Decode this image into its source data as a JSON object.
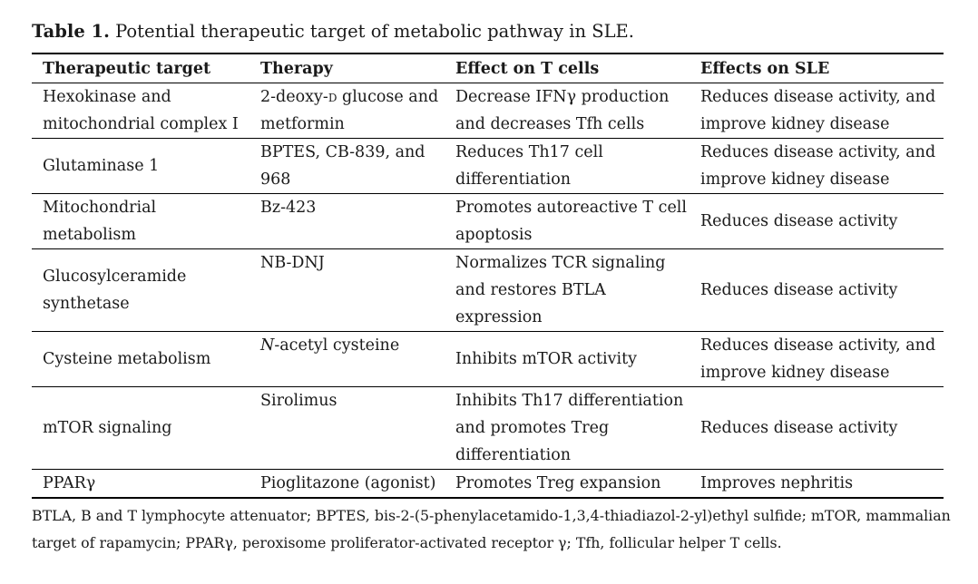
{
  "caption": {
    "label": "Table 1.",
    "text": "Potential therapeutic target of metabolic pathway in SLE."
  },
  "headers": [
    "Therapeutic target",
    "Therapy",
    "Effect on T cells",
    "Effects on SLE"
  ],
  "rows": [
    {
      "target": "Hexokinase and mitochondrial complex I",
      "therapy_pre": "2-deoxy-",
      "therapy_sc": "d",
      "therapy_post": " glucose and metformin",
      "effect_t": "Decrease IFNγ production and decreases Tfh cells",
      "effect_sle": "Reduces disease activity, and improve kidney disease"
    },
    {
      "target": "Glutaminase 1",
      "therapy": "BPTES, CB-839, and 968",
      "effect_t": "Reduces Th17 cell differentiation",
      "effect_sle": "Reduces disease activity, and improve kidney disease"
    },
    {
      "target": "Mitochondrial metabolism",
      "therapy": "Bz-423",
      "effect_t": "Promotes autoreactive T cell apoptosis",
      "effect_sle": "Reduces disease activity"
    },
    {
      "target": "Glucosylceramide synthetase",
      "therapy": "NB-DNJ",
      "effect_t": "Normalizes TCR signaling and restores BTLA expression",
      "effect_sle": "Reduces disease activity"
    },
    {
      "target": "Cysteine metabolism",
      "therapy_italic": "N",
      "therapy_rest": "-acetyl cysteine",
      "effect_t": "Inhibits mTOR activity",
      "effect_sle": "Reduces disease activity, and improve kidney disease"
    },
    {
      "target": "mTOR signaling",
      "therapy": "Sirolimus",
      "effect_t": "Inhibits Th17 differentiation and promotes Treg differentiation",
      "effect_sle": "Reduces disease activity"
    },
    {
      "target": "PPARγ",
      "therapy": "Pioglitazone (agonist)",
      "effect_t": "Promotes Treg expansion",
      "effect_sle": "Improves nephritis"
    }
  ],
  "footnote": "BTLA, B and T lymphocyte attenuator; BPTES, bis-2-(5-phenylacetamido-1,3,4-thiadiazol-2-yl)ethyl sulfide; mTOR, mammalian target of rapamycin; PPARγ, peroxisome proliferator-activated receptor γ; Tfh, follicular helper T cells."
}
